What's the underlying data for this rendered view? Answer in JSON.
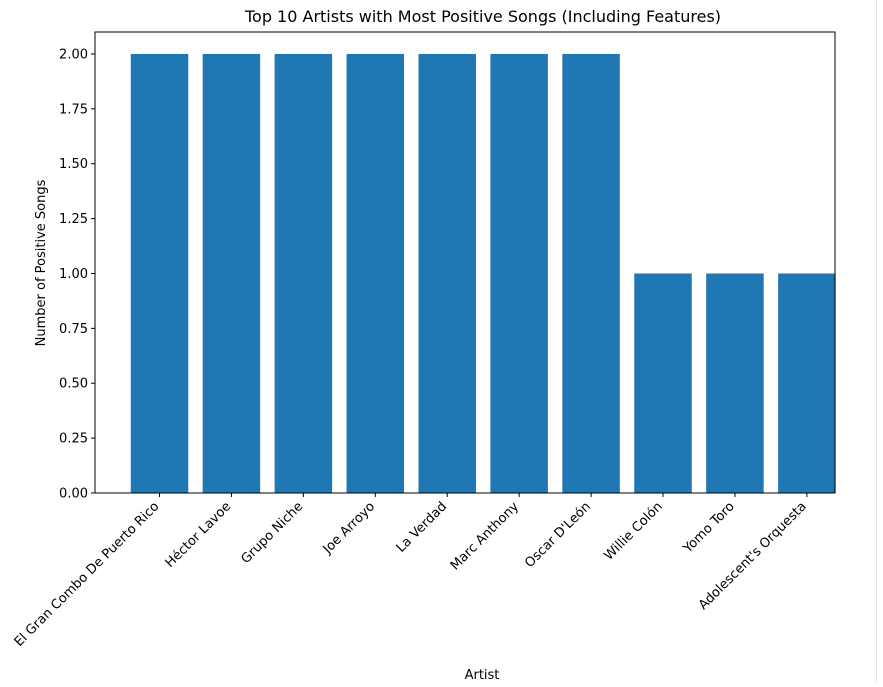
{
  "chart_data": {
    "type": "bar",
    "title": "Top 10 Artists with Most Positive Songs (Including Features)",
    "xlabel": "Artist",
    "ylabel": "Number of Positive Songs",
    "categories": [
      "El Gran Combo De Puerto Rico",
      "Héctor Lavoe",
      "Grupo Niche",
      "Joe Arroyo",
      "La Verdad",
      "Marc Anthony",
      "Oscar D'León",
      "Willie Colón",
      "Yomo Toro",
      "Adolescent's Orquesta"
    ],
    "values": [
      2,
      2,
      2,
      2,
      2,
      2,
      2,
      1,
      1,
      1
    ],
    "ylim": [
      0,
      2.1
    ],
    "yticks": [
      "0.00",
      "0.25",
      "0.50",
      "0.75",
      "1.00",
      "1.25",
      "1.50",
      "1.75",
      "2.00"
    ],
    "bar_color": "#1f77b4",
    "grid": false,
    "legend": "none"
  }
}
